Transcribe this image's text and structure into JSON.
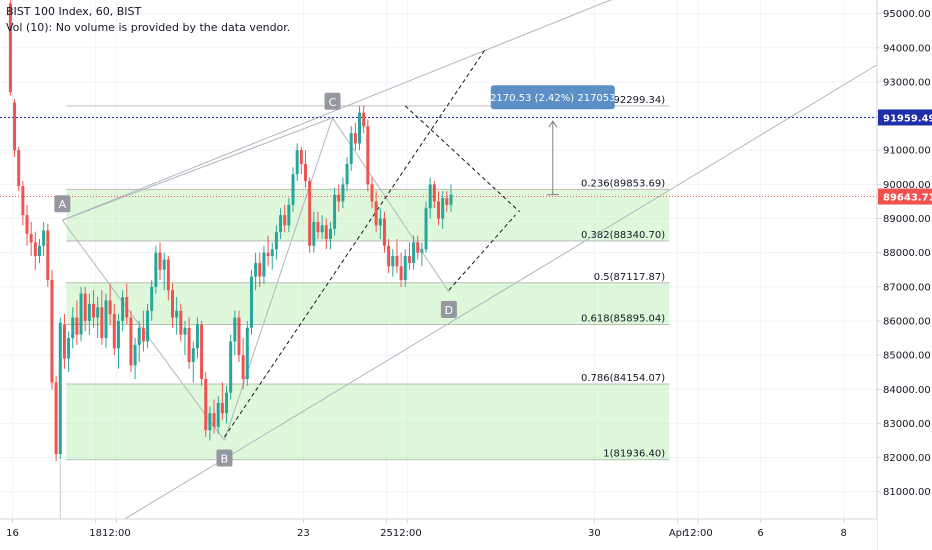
{
  "legend": {
    "title": "BIST 100 Index, 60, BIST",
    "volume_note": "Vol (10): No volume is provided by the data vendor."
  },
  "colors": {
    "up": "#26a69a",
    "down": "#ef5350",
    "fib_fill": "#b7f0b0",
    "fib_line": "#808080",
    "trend_line": "#b2b5be",
    "dashed_line": "#131722",
    "current_price_bg": "#ef5350",
    "target_price_bg": "#1e2ea8",
    "measure_box": "#5b8fc6"
  },
  "chart_data": {
    "type": "candlestick",
    "y_axis": {
      "ticks": [
        81000,
        82000,
        83000,
        84000,
        85000,
        86000,
        87000,
        88000,
        89000,
        90000,
        91000,
        92000,
        93000,
        94000,
        95000
      ],
      "tick_labels": [
        "81000.00",
        "82000.00",
        "83000.00",
        "84000.00",
        "85000.00",
        "86000.00",
        "87000.00",
        "88000.00",
        "89000.00",
        "90000.00",
        "91000.00",
        "92000.00",
        "93000.00",
        "94000.00",
        "95000.00"
      ],
      "range": [
        80200,
        95400
      ]
    },
    "x_axis": {
      "tick_labels": [
        "16",
        "18",
        "12:00",
        "23",
        "25",
        "12:00",
        "30",
        "Apr",
        "12:00",
        "6",
        "8"
      ],
      "tick_days": [
        0,
        2,
        2.5,
        7,
        9,
        9.5,
        14,
        16,
        16.5,
        18,
        20
      ],
      "range": [
        -0.3,
        20.8
      ]
    },
    "price_labels": [
      {
        "value": 91959.49,
        "text": "91959.49",
        "kind": "target"
      },
      {
        "value": 89643.71,
        "text": "89643.71",
        "kind": "current"
      }
    ],
    "fib_levels": [
      {
        "ratio": "0",
        "value": 92299.34,
        "label": "0(92299.34)"
      },
      {
        "ratio": "0.236",
        "value": 89853.69,
        "label": "0.236(89853.69)"
      },
      {
        "ratio": "0.382",
        "value": 88340.7,
        "label": "0.382(88340.70)"
      },
      {
        "ratio": "0.5",
        "value": 87117.87,
        "label": "0.5(87117.87)"
      },
      {
        "ratio": "0.618",
        "value": 85895.04,
        "label": "0.618(85895.04)"
      },
      {
        "ratio": "0.786",
        "value": 84154.07,
        "label": "0.786(84154.07)"
      },
      {
        "ratio": "1",
        "value": 81936.4,
        "label": "1(81936.40)"
      }
    ],
    "fib_day_range": [
      1.3,
      15.8
    ],
    "pattern_points": [
      {
        "label": "A",
        "day": 1.2,
        "value": 88950
      },
      {
        "label": "B",
        "day": 5.1,
        "value": 82500
      },
      {
        "label": "C",
        "day": 7.7,
        "value": 91950
      },
      {
        "label": "D",
        "day": 10.5,
        "value": 86850
      }
    ],
    "measure": {
      "label": "2170.53 (2.42%) 217053",
      "from_day": 13.0,
      "from_value": 89700,
      "to_day": 13.0,
      "to_value": 91850
    },
    "candles": [
      [
        -0.05,
        95300,
        95400,
        92600,
        92700
      ],
      [
        0.05,
        92400,
        92500,
        90800,
        91000
      ],
      [
        0.15,
        91000,
        91100,
        89800,
        89950
      ],
      [
        0.25,
        89950,
        90100,
        88800,
        89100
      ],
      [
        0.35,
        89100,
        89400,
        88200,
        88550
      ],
      [
        0.45,
        88550,
        88900,
        87900,
        88300
      ],
      [
        0.55,
        88300,
        88600,
        87500,
        87900
      ],
      [
        0.65,
        87900,
        88400,
        87700,
        88200
      ],
      [
        0.75,
        88200,
        88900,
        87900,
        88650
      ],
      [
        0.85,
        88650,
        88850,
        87000,
        87200
      ],
      [
        0.95,
        87200,
        87500,
        84000,
        84200
      ],
      [
        1.05,
        84200,
        84400,
        81900,
        82100
      ],
      [
        1.15,
        82100,
        86100,
        81950,
        85950
      ],
      [
        1.25,
        85900,
        86200,
        84600,
        84900
      ],
      [
        1.35,
        84900,
        85700,
        84500,
        85500
      ],
      [
        1.45,
        85500,
        86400,
        85200,
        86100
      ],
      [
        1.55,
        86100,
        86600,
        85300,
        85600
      ],
      [
        1.65,
        85600,
        87000,
        85400,
        86800
      ],
      [
        1.75,
        86800,
        87000,
        85700,
        86000
      ],
      [
        1.85,
        86000,
        86800,
        85600,
        86500
      ],
      [
        1.95,
        86500,
        86900,
        85800,
        86100
      ],
      [
        2.05,
        86100,
        86700,
        85500,
        86400
      ],
      [
        2.15,
        86400,
        86900,
        85300,
        85500
      ],
      [
        2.25,
        85500,
        86800,
        85200,
        86600
      ],
      [
        2.35,
        86600,
        87100,
        85900,
        86200
      ],
      [
        2.45,
        86200,
        86500,
        85000,
        85200
      ],
      [
        2.55,
        85200,
        86200,
        84600,
        86000
      ],
      [
        2.65,
        86000,
        86900,
        85700,
        86700
      ],
      [
        2.75,
        86700,
        87100,
        85900,
        86100
      ],
      [
        2.85,
        86100,
        86300,
        84500,
        84700
      ],
      [
        2.95,
        84700,
        85500,
        84300,
        85300
      ],
      [
        3.05,
        85300,
        86000,
        84800,
        85800
      ],
      [
        3.15,
        85800,
        86300,
        85100,
        85400
      ],
      [
        3.25,
        85400,
        86500,
        85200,
        86300
      ],
      [
        3.35,
        86300,
        87200,
        86000,
        87000
      ],
      [
        3.45,
        87000,
        88200,
        86800,
        88000
      ],
      [
        3.55,
        88000,
        88300,
        87200,
        87500
      ],
      [
        3.65,
        87500,
        88000,
        86900,
        87800
      ],
      [
        3.75,
        87800,
        87900,
        86600,
        86900
      ],
      [
        3.85,
        86900,
        87100,
        85800,
        86100
      ],
      [
        3.95,
        86100,
        86700,
        85600,
        86300
      ],
      [
        4.05,
        86300,
        86500,
        85400,
        85600
      ],
      [
        4.15,
        85600,
        86000,
        85000,
        85800
      ],
      [
        4.25,
        85800,
        86100,
        84600,
        84800
      ],
      [
        4.35,
        84800,
        85400,
        84200,
        85200
      ],
      [
        4.45,
        85200,
        86100,
        84900,
        85900
      ],
      [
        4.55,
        85900,
        86000,
        84100,
        84300
      ],
      [
        4.65,
        84300,
        84500,
        82600,
        82800
      ],
      [
        4.75,
        82800,
        83500,
        82500,
        83300
      ],
      [
        4.85,
        83300,
        83700,
        82700,
        82900
      ],
      [
        4.95,
        82900,
        83800,
        82700,
        83600
      ],
      [
        5.05,
        83600,
        84200,
        83100,
        83300
      ],
      [
        5.15,
        83300,
        84100,
        83000,
        83900
      ],
      [
        5.25,
        83900,
        85600,
        83700,
        85400
      ],
      [
        5.35,
        85400,
        86300,
        85000,
        86100
      ],
      [
        5.45,
        86100,
        86300,
        84800,
        85000
      ],
      [
        5.55,
        85000,
        85500,
        84000,
        84300
      ],
      [
        5.65,
        84300,
        86000,
        84100,
        85800
      ],
      [
        5.75,
        85800,
        87500,
        85600,
        87300
      ],
      [
        5.85,
        87300,
        88000,
        86900,
        87700
      ],
      [
        5.95,
        87700,
        88000,
        87000,
        87300
      ],
      [
        6.05,
        87300,
        88200,
        87100,
        88000
      ],
      [
        6.15,
        88000,
        88500,
        87600,
        87900
      ],
      [
        6.25,
        87900,
        88300,
        87500,
        88100
      ],
      [
        6.35,
        88100,
        88800,
        87800,
        88600
      ],
      [
        6.45,
        88600,
        89300,
        88400,
        89100
      ],
      [
        6.55,
        89100,
        89400,
        88600,
        88800
      ],
      [
        6.65,
        88800,
        89600,
        88600,
        89400
      ],
      [
        6.75,
        89400,
        90500,
        89200,
        90300
      ],
      [
        6.85,
        90300,
        91200,
        90100,
        91000
      ],
      [
        6.95,
        91000,
        91100,
        90300,
        90600
      ],
      [
        7.05,
        90600,
        91000,
        89900,
        90100
      ],
      [
        7.15,
        90100,
        90200,
        88000,
        88200
      ],
      [
        7.25,
        88200,
        89200,
        88000,
        88900
      ],
      [
        7.35,
        88900,
        89200,
        88400,
        88600
      ],
      [
        7.45,
        88600,
        89100,
        88400,
        88800
      ],
      [
        7.55,
        88800,
        89000,
        88100,
        88400
      ],
      [
        7.65,
        88400,
        88900,
        88100,
        88700
      ],
      [
        7.75,
        88700,
        89900,
        88500,
        89700
      ],
      [
        7.85,
        89700,
        90000,
        89200,
        89500
      ],
      [
        7.95,
        89500,
        90200,
        89300,
        90000
      ],
      [
        8.05,
        90000,
        90800,
        89800,
        90600
      ],
      [
        8.15,
        90600,
        91700,
        90400,
        91500
      ],
      [
        8.25,
        91500,
        91800,
        91000,
        91200
      ],
      [
        8.35,
        91200,
        92300,
        91000,
        92100
      ],
      [
        8.45,
        92100,
        92300,
        91500,
        91700
      ],
      [
        8.55,
        91700,
        91900,
        89800,
        90000
      ],
      [
        8.65,
        90000,
        90200,
        89300,
        89500
      ],
      [
        8.75,
        89500,
        89800,
        88600,
        88800
      ],
      [
        8.85,
        88800,
        89300,
        88400,
        89000
      ],
      [
        8.95,
        89000,
        89200,
        88000,
        88200
      ],
      [
        9.05,
        88200,
        88400,
        87400,
        87600
      ],
      [
        9.15,
        87600,
        88100,
        87300,
        87900
      ],
      [
        9.25,
        87900,
        88400,
        87400,
        87600
      ],
      [
        9.35,
        87600,
        88000,
        87000,
        87200
      ],
      [
        9.45,
        87200,
        88100,
        87000,
        87900
      ],
      [
        9.55,
        87900,
        88300,
        87500,
        87700
      ],
      [
        9.65,
        87700,
        88500,
        87500,
        88300
      ],
      [
        9.75,
        88300,
        88500,
        87800,
        88000
      ],
      [
        9.85,
        88000,
        88300,
        87600,
        88100
      ],
      [
        9.95,
        88100,
        89500,
        88000,
        89300
      ],
      [
        10.05,
        89300,
        90200,
        89000,
        90000
      ],
      [
        10.15,
        90000,
        90100,
        89300,
        89500
      ],
      [
        10.25,
        89500,
        89800,
        88800,
        89000
      ],
      [
        10.35,
        89000,
        89800,
        88700,
        89600
      ],
      [
        10.45,
        89600,
        89800,
        89200,
        89400
      ],
      [
        10.55,
        89400,
        90000,
        89200,
        89700
      ]
    ]
  }
}
